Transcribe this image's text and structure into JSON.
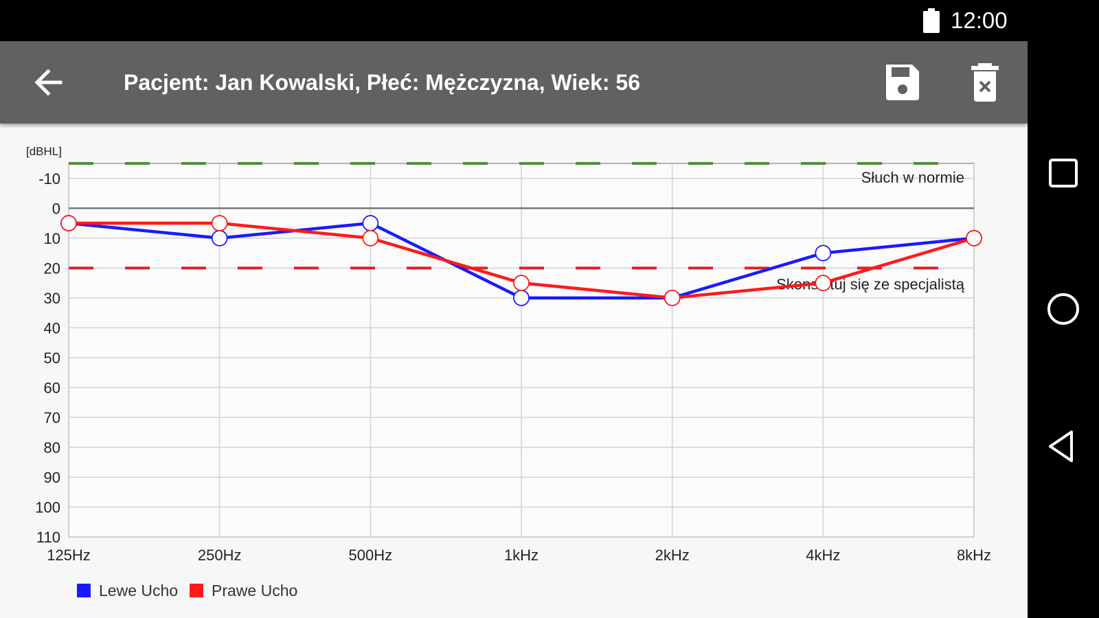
{
  "status_bar": {
    "time": "12:00",
    "battery_icon": "battery-full-icon"
  },
  "app_bar": {
    "back_icon": "arrow-back-icon",
    "title": "Pacjent: Jan Kowalski, Płeć: Mężczyzna, Wiek: 56",
    "save_icon": "floppy-disk-icon",
    "delete_icon": "trash-delete-icon"
  },
  "nav_bar": {
    "buttons": [
      "square-recents-icon",
      "circle-home-icon",
      "triangle-back-icon"
    ]
  },
  "colors": {
    "app_bar": "#616161",
    "left_ear": "#1a1aff",
    "right_ear": "#ff1a1a",
    "normal_line": "#4f8f3a",
    "consult_line": "#e02020"
  },
  "chart_data": {
    "type": "line",
    "unit_label": "[dBHL]",
    "categories": [
      "125Hz",
      "250Hz",
      "500Hz",
      "1kHz",
      "2kHz",
      "4kHz",
      "8kHz"
    ],
    "y_ticks": [
      "-10",
      "0",
      "10",
      "20",
      "30",
      "40",
      "50",
      "60",
      "70",
      "80",
      "90",
      "100",
      "110"
    ],
    "ylim": [
      -15,
      110
    ],
    "y_inverted": true,
    "grid": true,
    "legend_position": "bottom-left",
    "series": [
      {
        "name": "Lewe Ucho",
        "color": "#1a1aff",
        "values": [
          5,
          10,
          5,
          30,
          30,
          15,
          10
        ]
      },
      {
        "name": "Prawe Ucho",
        "color": "#ff1a1a",
        "values": [
          5,
          5,
          10,
          25,
          30,
          25,
          10
        ]
      }
    ],
    "reference_lines": [
      {
        "value": -15,
        "label": "Słuch w normie",
        "color": "#4f8f3a",
        "dashed": true
      },
      {
        "value": 20,
        "label": "Skonsultuj się ze specjalistą",
        "color": "#e02020",
        "dashed": true
      }
    ],
    "zero_line": 0
  }
}
